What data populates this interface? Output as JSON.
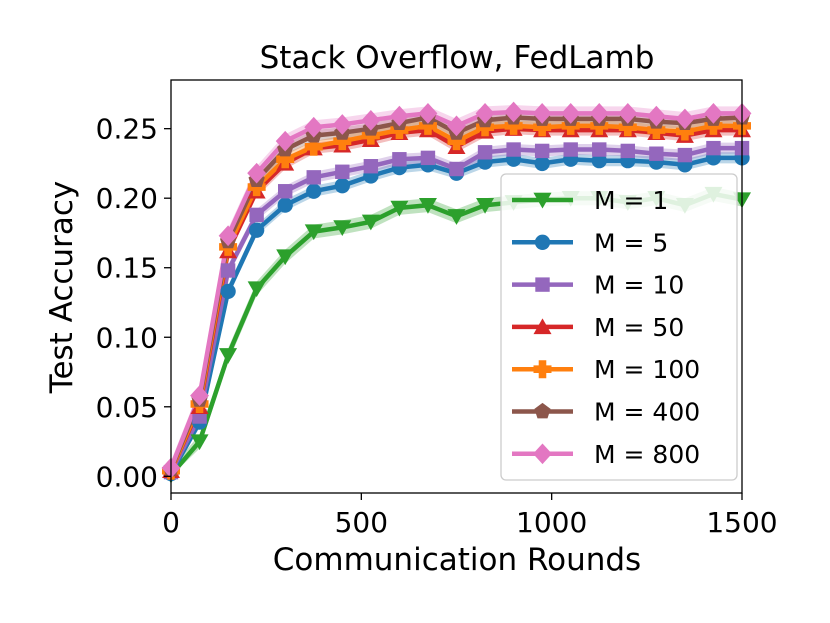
{
  "chart_data": {
    "type": "line",
    "title": "Stack Overflow, FedLamb",
    "xlabel": "Communication Rounds",
    "ylabel": "Test Accuracy",
    "xlim": [
      0,
      1500
    ],
    "ylim": [
      -0.012,
      0.285
    ],
    "xticks": [
      0,
      500,
      1000,
      1500
    ],
    "yticks": [
      0.0,
      0.05,
      0.1,
      0.15,
      0.2,
      0.25
    ],
    "xtick_labels": [
      "0",
      "500",
      "1000",
      "1500"
    ],
    "ytick_labels": [
      "0.00",
      "0.05",
      "0.10",
      "0.15",
      "0.20",
      "0.25"
    ],
    "grid": false,
    "legend_position": "right",
    "x": [
      0,
      75,
      150,
      225,
      300,
      375,
      450,
      525,
      600,
      675,
      750,
      825,
      900,
      975,
      1050,
      1125,
      1200,
      1275,
      1350,
      1425,
      1500
    ],
    "series": [
      {
        "name": "M = 1",
        "color": "#2ca02c",
        "marker": "triangle-down",
        "band": 0.005,
        "values": [
          0.001,
          0.025,
          0.087,
          0.135,
          0.158,
          0.176,
          0.179,
          0.183,
          0.193,
          0.195,
          0.187,
          0.195,
          0.197,
          0.199,
          0.2,
          0.2,
          0.197,
          0.2,
          0.195,
          0.203,
          0.199
        ]
      },
      {
        "name": "M = 5",
        "color": "#1f77b4",
        "marker": "circle",
        "band": 0.004,
        "values": [
          0.002,
          0.039,
          0.133,
          0.177,
          0.195,
          0.205,
          0.209,
          0.216,
          0.222,
          0.224,
          0.218,
          0.226,
          0.228,
          0.225,
          0.228,
          0.227,
          0.227,
          0.226,
          0.224,
          0.229,
          0.229
        ]
      },
      {
        "name": "M = 10",
        "color": "#9467bd",
        "marker": "square",
        "band": 0.004,
        "values": [
          0.003,
          0.043,
          0.148,
          0.188,
          0.205,
          0.215,
          0.219,
          0.223,
          0.228,
          0.229,
          0.221,
          0.233,
          0.235,
          0.234,
          0.235,
          0.235,
          0.234,
          0.232,
          0.231,
          0.236,
          0.236
        ]
      },
      {
        "name": "M = 50",
        "color": "#d62728",
        "marker": "triangle-up",
        "band": 0.004,
        "values": [
          0.004,
          0.05,
          0.162,
          0.205,
          0.225,
          0.236,
          0.238,
          0.242,
          0.247,
          0.249,
          0.237,
          0.248,
          0.25,
          0.249,
          0.249,
          0.249,
          0.249,
          0.247,
          0.245,
          0.249,
          0.249
        ]
      },
      {
        "name": "M = 100",
        "color": "#ff7f0e",
        "marker": "plus",
        "band": 0.004,
        "values": [
          0.004,
          0.052,
          0.165,
          0.208,
          0.228,
          0.237,
          0.241,
          0.245,
          0.249,
          0.252,
          0.241,
          0.251,
          0.252,
          0.251,
          0.252,
          0.252,
          0.251,
          0.249,
          0.248,
          0.252,
          0.252
        ]
      },
      {
        "name": "M = 400",
        "color": "#8c564b",
        "marker": "pentagon",
        "band": 0.004,
        "values": [
          0.005,
          0.055,
          0.169,
          0.213,
          0.235,
          0.245,
          0.247,
          0.25,
          0.254,
          0.258,
          0.247,
          0.256,
          0.258,
          0.257,
          0.257,
          0.257,
          0.257,
          0.255,
          0.254,
          0.257,
          0.258
        ]
      },
      {
        "name": "M = 800",
        "color": "#e377c2",
        "marker": "diamond",
        "band": 0.005,
        "values": [
          0.006,
          0.058,
          0.173,
          0.218,
          0.241,
          0.251,
          0.253,
          0.256,
          0.259,
          0.261,
          0.252,
          0.261,
          0.262,
          0.261,
          0.261,
          0.261,
          0.261,
          0.259,
          0.257,
          0.261,
          0.261
        ]
      }
    ]
  }
}
